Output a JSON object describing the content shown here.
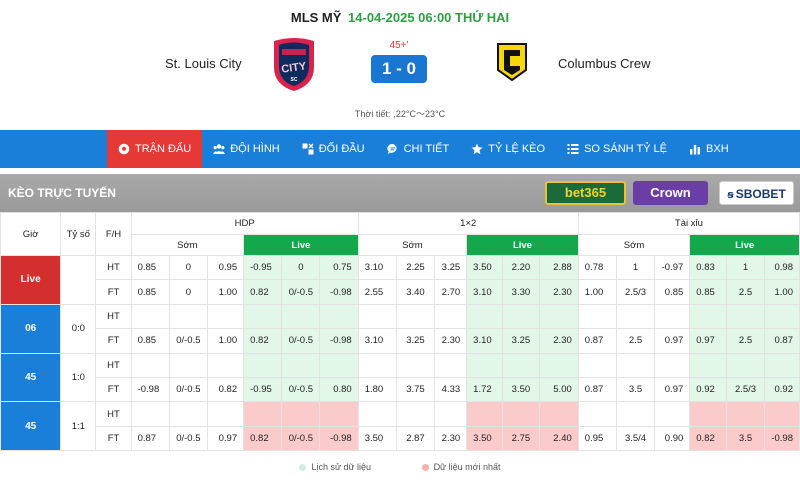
{
  "match": {
    "league": "MLS MỸ",
    "datetime": "14-04-2025 06:00 THỨ HAI",
    "home": "St. Louis City",
    "away": "Columbus Crew",
    "minute": "45+'",
    "score": "1 - 0",
    "weather_label": "Thời tiết:",
    "weather_value": ",22°C～23°C",
    "home_logo_text": "CITY",
    "home_logo_sub": "SC"
  },
  "nav": {
    "items": [
      {
        "label": "TRẬN ĐẤU",
        "icon": "soccer-ball-icon",
        "active": true
      },
      {
        "label": "ĐỘI HÌNH",
        "icon": "team-icon",
        "active": false
      },
      {
        "label": "ĐỐI ĐẦU",
        "icon": "versus-icon",
        "active": false
      },
      {
        "label": "CHI TIẾT",
        "icon": "chat-detail-icon",
        "active": false
      },
      {
        "label": "TỶ LỆ KÈO",
        "icon": "star-icon",
        "active": false
      },
      {
        "label": "SO SÁNH TỶ LỆ",
        "icon": "list-icon",
        "active": false
      },
      {
        "label": "BXH",
        "icon": "bar-chart-icon",
        "active": false
      }
    ]
  },
  "section": {
    "title": "KÈO TRỰC TUYẾN",
    "bookmakers": [
      "bet365",
      "Crown",
      "SBOBET"
    ]
  },
  "table": {
    "headers": {
      "time": "Giờ",
      "score": "Tỷ số",
      "period": "F/H",
      "hdp": "HDP",
      "x12": "1×2",
      "ou": "Tài xỉu",
      "early": "Sớm",
      "live": "Live"
    },
    "blocks": [
      {
        "time": "Live",
        "score": "",
        "time_class": "t-live",
        "live_class": "lv-green",
        "rows": [
          {
            "period": "HT",
            "hdp_e": [
              "0.85",
              "0",
              "0.95"
            ],
            "hdp_l": [
              "-0.95",
              "0",
              "0.75"
            ],
            "x12_e": [
              "3.10",
              "2.25",
              "3.25"
            ],
            "x12_l": [
              "3.50",
              "2.20",
              "2.88"
            ],
            "ou_e": [
              "0.78",
              "1",
              "-0.97"
            ],
            "ou_l": [
              "0.83",
              "1",
              "0.98"
            ]
          },
          {
            "period": "FT",
            "hdp_e": [
              "0.85",
              "0",
              "1.00"
            ],
            "hdp_l": [
              "0.82",
              "0/-0.5",
              "-0.98"
            ],
            "x12_e": [
              "2.55",
              "3.40",
              "2.70"
            ],
            "x12_l": [
              "3.10",
              "3.30",
              "2.30"
            ],
            "ou_e": [
              "1.00",
              "2.5/3",
              "0.85"
            ],
            "ou_l": [
              "0.85",
              "2.5",
              "1.00"
            ]
          }
        ]
      },
      {
        "time": "06",
        "score": "0:0",
        "time_class": "t-blue",
        "live_class": "lv-green",
        "rows": [
          {
            "period": "HT",
            "hdp_e": [
              "",
              "",
              ""
            ],
            "hdp_l": [
              "",
              "",
              ""
            ],
            "x12_e": [
              "",
              "",
              ""
            ],
            "x12_l": [
              "",
              "",
              ""
            ],
            "ou_e": [
              "",
              "",
              ""
            ],
            "ou_l": [
              "",
              "",
              ""
            ]
          },
          {
            "period": "FT",
            "hdp_e": [
              "0.85",
              "0/-0.5",
              "1.00"
            ],
            "hdp_l": [
              "0.82",
              "0/-0.5",
              "-0.98"
            ],
            "x12_e": [
              "3.10",
              "3.25",
              "2.30"
            ],
            "x12_l": [
              "3.10",
              "3.25",
              "2.30"
            ],
            "ou_e": [
              "0.87",
              "2.5",
              "0.97"
            ],
            "ou_l": [
              "0.97",
              "2.5",
              "0.87"
            ]
          }
        ]
      },
      {
        "time": "45",
        "score": "1:0",
        "time_class": "t-blue",
        "live_class": "lv-green",
        "rows": [
          {
            "period": "HT",
            "hdp_e": [
              "",
              "",
              ""
            ],
            "hdp_l": [
              "",
              "",
              ""
            ],
            "x12_e": [
              "",
              "",
              ""
            ],
            "x12_l": [
              "",
              "",
              ""
            ],
            "ou_e": [
              "",
              "",
              ""
            ],
            "ou_l": [
              "",
              "",
              ""
            ]
          },
          {
            "period": "FT",
            "hdp_e": [
              "-0.98",
              "0/-0.5",
              "0.82"
            ],
            "hdp_l": [
              "-0.95",
              "0/-0.5",
              "0.80"
            ],
            "x12_e": [
              "1.80",
              "3.75",
              "4.33"
            ],
            "x12_l": [
              "1.72",
              "3.50",
              "5.00"
            ],
            "ou_e": [
              "0.87",
              "3.5",
              "0.97"
            ],
            "ou_l": [
              "0.92",
              "2.5/3",
              "0.92"
            ]
          }
        ]
      },
      {
        "time": "45",
        "score": "1:1",
        "time_class": "t-blue",
        "live_class": "lv-red",
        "rows": [
          {
            "period": "HT",
            "hdp_e": [
              "",
              "",
              ""
            ],
            "hdp_l": [
              "",
              "",
              ""
            ],
            "x12_e": [
              "",
              "",
              ""
            ],
            "x12_l": [
              "",
              "",
              ""
            ],
            "ou_e": [
              "",
              "",
              ""
            ],
            "ou_l": [
              "",
              "",
              ""
            ]
          },
          {
            "period": "FT",
            "hdp_e": [
              "0.87",
              "0/-0.5",
              "0.97"
            ],
            "hdp_l": [
              "0.82",
              "0/-0.5",
              "-0.98"
            ],
            "x12_e": [
              "3.50",
              "2.87",
              "2.30"
            ],
            "x12_l": [
              "3.50",
              "2.75",
              "2.40"
            ],
            "ou_e": [
              "0.95",
              "3.5/4",
              "0.90"
            ],
            "ou_l": [
              "0.82",
              "3.5",
              "-0.98"
            ]
          }
        ]
      }
    ]
  },
  "legend": {
    "history": "Lịch sử dữ liệu",
    "latest": "Dữ liệu mới nhất"
  },
  "colors": {
    "accent_blue": "#1a7fd8",
    "live_red": "#e53935",
    "live_green": "#12a84b",
    "date_green": "#2ea043"
  }
}
